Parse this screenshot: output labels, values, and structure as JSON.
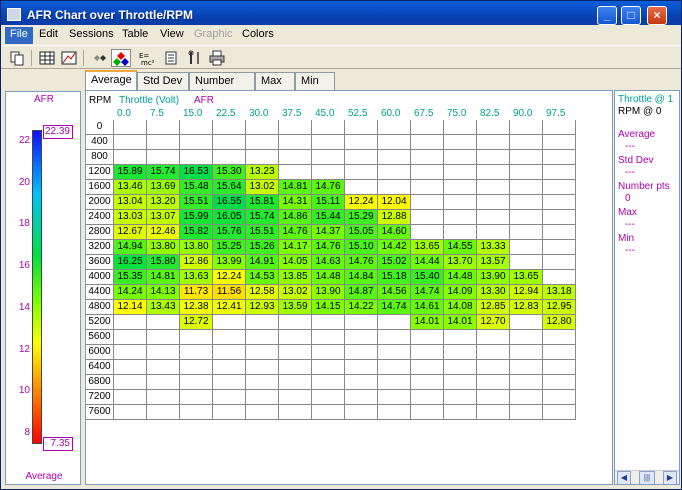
{
  "window": {
    "title": "AFR Chart over Throttle/RPM"
  },
  "menu": [
    "File",
    "Edit",
    "Sessions",
    "Table",
    "View",
    "Graphic",
    "Colors"
  ],
  "tabs": [
    "Average",
    "Std Dev",
    "Number pts",
    "Max",
    "Min"
  ],
  "legend": {
    "title": "AFR",
    "bottom_label": "Average",
    "ticks": [
      "22",
      "20",
      "18",
      "16",
      "14",
      "12",
      "10",
      "8"
    ],
    "max_marker": "22.39",
    "min_marker": "7.35"
  },
  "grid": {
    "row_axis_label": "RPM",
    "col_axis_label": "Throttle (Volt)",
    "value_label": "AFR",
    "columns": [
      "0.0",
      "7.5",
      "15.0",
      "22.5",
      "30.0",
      "37.5",
      "45.0",
      "52.5",
      "60.0",
      "67.5",
      "75.0",
      "82.5",
      "90.0",
      "97.5"
    ],
    "rows": [
      "0",
      "400",
      "800",
      "1200",
      "1600",
      "2000",
      "2400",
      "2800",
      "3200",
      "3600",
      "4000",
      "4400",
      "4800",
      "5200",
      "5600",
      "6000",
      "6400",
      "6800",
      "7200",
      "7600"
    ],
    "values": [
      [
        "",
        "",
        "",
        "",
        "",
        "",
        "",
        "",
        "",
        "",
        "",
        "",
        "",
        ""
      ],
      [
        "",
        "",
        "",
        "",
        "",
        "",
        "",
        "",
        "",
        "",
        "",
        "",
        "",
        ""
      ],
      [
        "",
        "",
        "",
        "",
        "",
        "",
        "",
        "",
        "",
        "",
        "",
        "",
        "",
        ""
      ],
      [
        "15.89",
        "15.74",
        "16.53",
        "15.30",
        "13.23",
        "",
        "",
        "",
        "",
        "",
        "",
        "",
        "",
        ""
      ],
      [
        "13.46",
        "13.69",
        "15.48",
        "15.64",
        "13.02",
        "14.81",
        "14.76",
        "",
        "",
        "",
        "",
        "",
        "",
        ""
      ],
      [
        "13.04",
        "13.20",
        "15.51",
        "16.55",
        "15.81",
        "14.31",
        "15.11",
        "12.24",
        "12.04",
        "",
        "",
        "",
        "",
        ""
      ],
      [
        "13.03",
        "13.07",
        "15.99",
        "16.05",
        "15.74",
        "14.86",
        "15.44",
        "15.29",
        "12.88",
        "",
        "",
        "",
        "",
        ""
      ],
      [
        "12.67",
        "12.46",
        "15.82",
        "15.76",
        "15.51",
        "14.76",
        "14.37",
        "15.05",
        "14.60",
        "",
        "",
        "",
        "",
        ""
      ],
      [
        "14.94",
        "13.80",
        "13.80",
        "15.25",
        "15.26",
        "14.17",
        "14.76",
        "15.10",
        "14.42",
        "13.65",
        "14.55",
        "13.33",
        "",
        ""
      ],
      [
        "16.25",
        "15.80",
        "12.86",
        "13.99",
        "14.91",
        "14.05",
        "14.63",
        "14.76",
        "15.02",
        "14.44",
        "13.70",
        "13.57",
        "",
        ""
      ],
      [
        "15.35",
        "14.81",
        "13.63",
        "12.24",
        "14.53",
        "13.85",
        "14.48",
        "14.84",
        "15.18",
        "15.40",
        "14.48",
        "13.90",
        "13.65",
        ""
      ],
      [
        "14.24",
        "14.13",
        "11.73",
        "11.56",
        "12.58",
        "13.02",
        "13.90",
        "14.87",
        "14.56",
        "14.74",
        "14.09",
        "13.30",
        "12.94",
        "13.18"
      ],
      [
        "12.14",
        "13.43",
        "12.38",
        "12.41",
        "12.93",
        "13.59",
        "14.15",
        "14.22",
        "14.74",
        "14.61",
        "14.08",
        "12.85",
        "12.83",
        "12.95"
      ],
      [
        "",
        "",
        "12.72",
        "",
        "",
        "",
        "",
        "",
        "",
        "14.01",
        "14.01",
        "12.70",
        "",
        "12.80"
      ],
      [
        "",
        "",
        "",
        "",
        "",
        "",
        "",
        "",
        "",
        "",
        "",
        "",
        "",
        ""
      ],
      [
        "",
        "",
        "",
        "",
        "",
        "",
        "",
        "",
        "",
        "",
        "",
        "",
        "",
        ""
      ],
      [
        "",
        "",
        "",
        "",
        "",
        "",
        "",
        "",
        "",
        "",
        "",
        "",
        "",
        ""
      ],
      [
        "",
        "",
        "",
        "",
        "",
        "",
        "",
        "",
        "",
        "",
        "",
        "",
        "",
        ""
      ],
      [
        "",
        "",
        "",
        "",
        "",
        "",
        "",
        "",
        "",
        "",
        "",
        "",
        "",
        ""
      ],
      [
        "",
        "",
        "",
        "",
        "",
        "",
        "",
        "",
        "",
        "",
        "",
        "",
        "",
        ""
      ]
    ]
  },
  "info_panel": {
    "header_lines": [
      "Throttle @ 1",
      "RPM @ 0"
    ],
    "stats": [
      {
        "label": "Average",
        "value": "---"
      },
      {
        "label": "Std Dev",
        "value": "---"
      },
      {
        "label": "Number pts",
        "value": "0"
      },
      {
        "label": "Max",
        "value": "---"
      },
      {
        "label": "Min",
        "value": "---"
      }
    ]
  },
  "colors": {
    "accent": "#b000b0",
    "axis": "#00a090",
    "selected_menu": "#316ac5"
  }
}
